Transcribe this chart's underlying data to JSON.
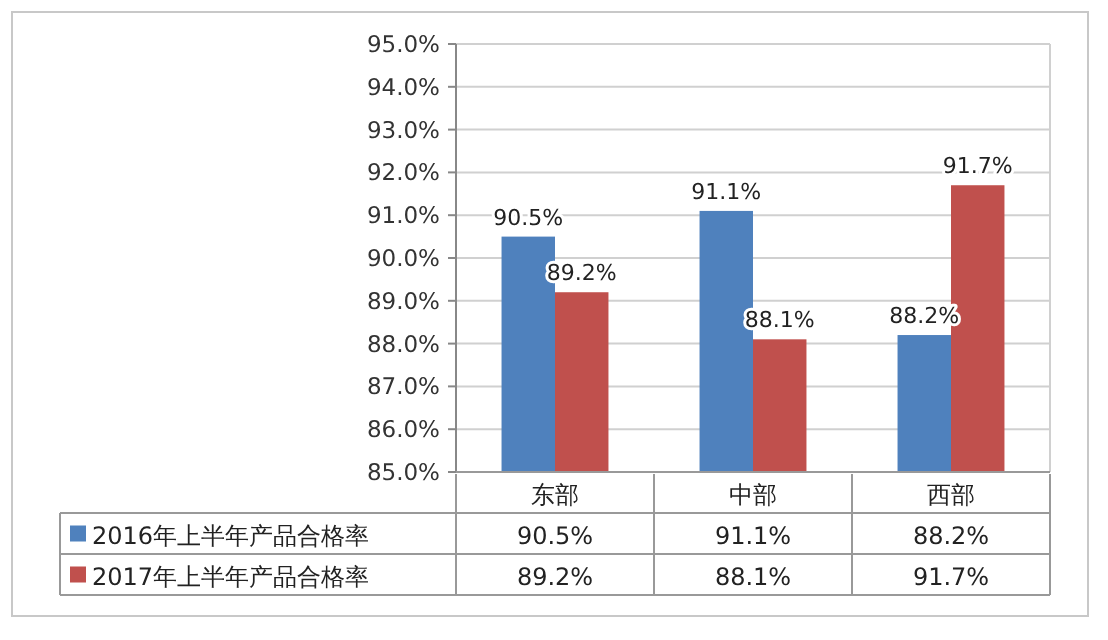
{
  "chart_data": {
    "type": "bar",
    "categories": [
      "东部",
      "中部",
      "西部"
    ],
    "series": [
      {
        "name": "2016年上半年产品合格率",
        "color": "#4f81bd",
        "values": [
          90.5,
          91.1,
          88.2
        ],
        "value_labels": [
          "90.5%",
          "91.1%",
          "88.2%"
        ]
      },
      {
        "name": "2017年上半年产品合格率",
        "color": "#c0504d",
        "values": [
          89.2,
          88.1,
          91.7
        ],
        "value_labels": [
          "89.2%",
          "88.1%",
          "91.7%"
        ]
      }
    ],
    "ylim": [
      85,
      95
    ],
    "yticks": [
      {
        "value": 85,
        "label": "85.0%"
      },
      {
        "value": 86,
        "label": "86.0%"
      },
      {
        "value": 87,
        "label": "87.0%"
      },
      {
        "value": 88,
        "label": "88.0%"
      },
      {
        "value": 89,
        "label": "89.0%"
      },
      {
        "value": 90,
        "label": "90.0%"
      },
      {
        "value": 91,
        "label": "91.0%"
      },
      {
        "value": 92,
        "label": "92.0%"
      },
      {
        "value": 93,
        "label": "93.0%"
      },
      {
        "value": 94,
        "label": "94.0%"
      },
      {
        "value": 95,
        "label": "95.0%"
      }
    ],
    "grid": "y",
    "legend": "bottom left"
  }
}
